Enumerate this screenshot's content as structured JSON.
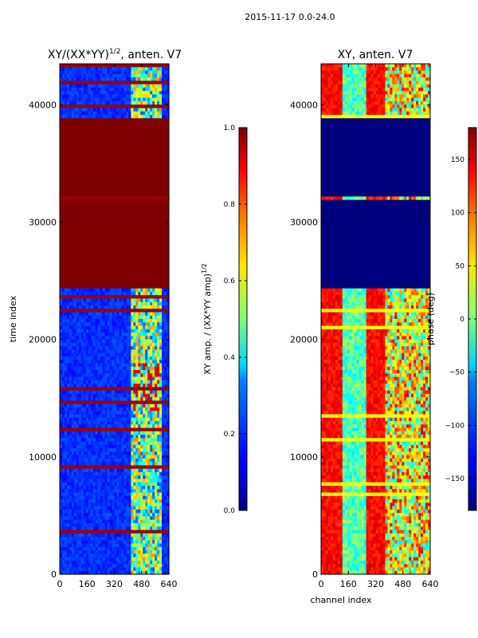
{
  "figure_title": "2015-11-17 0.0-24.0",
  "chart_data": [
    {
      "type": "heatmap",
      "title_prefix": "XY/(XX*YY)",
      "title_exponent": "1/2",
      "title_suffix": ", anten. V7",
      "xlabel": "",
      "ylabel": "time index",
      "xlim": [
        0,
        640
      ],
      "ylim": [
        0,
        43500
      ],
      "xticks": [
        0,
        160,
        320,
        480,
        640
      ],
      "yticks": [
        0,
        10000,
        20000,
        30000,
        40000
      ],
      "colormap": "jet",
      "colorbar": {
        "label_prefix": "XY amp. / (XX*YY amp)",
        "label_exponent": "1/2",
        "range": [
          0.0,
          1.0
        ],
        "ticks": [
          "0.0",
          "0.2",
          "0.4",
          "0.6",
          "0.8",
          "1.0"
        ]
      },
      "saturated_time_ranges": [
        [
          24500,
          32000
        ],
        [
          32300,
          38800
        ]
      ]
    },
    {
      "type": "heatmap",
      "title": "XY, anten. V7",
      "xlabel": "channel index",
      "ylabel": "",
      "xlim": [
        0,
        640
      ],
      "ylim": [
        0,
        43500
      ],
      "xticks": [
        0,
        160,
        320,
        480,
        640
      ],
      "yticks": [
        0,
        10000,
        20000,
        30000,
        40000
      ],
      "colormap": "jet",
      "colorbar": {
        "label": "phase (deg)",
        "range": [
          -180,
          180
        ],
        "ticks": [
          "-150",
          "-100",
          "-50",
          "0",
          "50",
          "100",
          "150"
        ]
      },
      "constant_time_ranges": [
        [
          24500,
          32000
        ],
        [
          32300,
          38800
        ]
      ]
    }
  ]
}
